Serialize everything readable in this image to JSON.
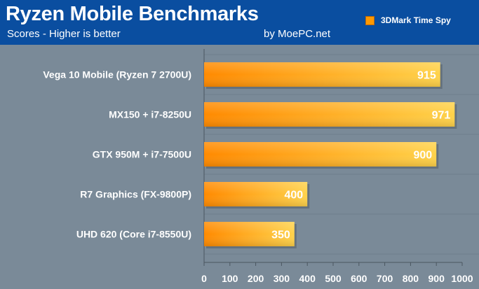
{
  "header": {
    "title": "Ryzen Mobile Benchmarks",
    "subtitle": "Scores - Higher is better",
    "credit": "by MoePC.net"
  },
  "colors": {
    "header_bg": "#0a4ea0",
    "plot_bg": "#7a8a98",
    "bar_light": "#ffd24a",
    "bar_dark": "#ff8a00",
    "text": "#ffffff"
  },
  "chart_data": {
    "type": "bar",
    "orientation": "horizontal",
    "title": "Ryzen Mobile Benchmarks",
    "subtitle": "Scores - Higher is better",
    "categories": [
      "Vega 10 Mobile (Ryzen 7 2700U)",
      "MX150 + i7-8250U",
      "GTX 950M + i7-7500U",
      "R7 Graphics (FX-9800P)",
      "UHD 620 (Core i7-8550U)"
    ],
    "series": [
      {
        "name": "3DMark Time Spy",
        "values": [
          915,
          971,
          900,
          400,
          350
        ]
      }
    ],
    "xlim": [
      0,
      1000
    ],
    "xticks": [
      "0",
      "100",
      "200",
      "300",
      "400",
      "500",
      "600",
      "700",
      "800",
      "900",
      "1000"
    ],
    "grid": true,
    "legend_position": "top-right"
  }
}
